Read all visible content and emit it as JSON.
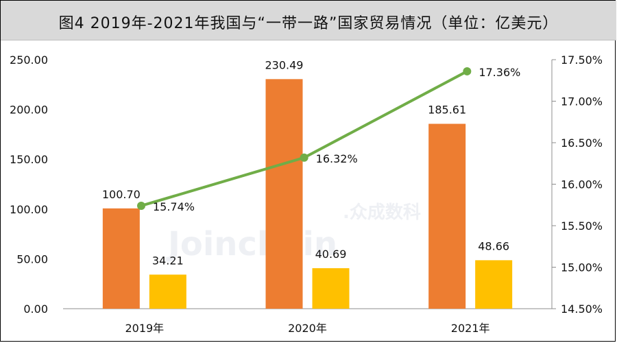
{
  "title": "图4  2019年-2021年我国与“一带一路”国家贸易情况（单位：亿美元）",
  "watermark": {
    "brand": "Joinchain",
    "suffix": ".众成数科"
  },
  "colors": {
    "bar_primary": "#ed7d31",
    "bar_secondary": "#ffc000",
    "line": "#70ad47",
    "title_bg": "#d9d9d9"
  },
  "chart_data": {
    "type": "bar",
    "categories": [
      "2019年",
      "2020年",
      "2021年"
    ],
    "series": [
      {
        "values": [
          100.7,
          230.49,
          185.61
        ],
        "color": "#ed7d31",
        "axis": "left"
      },
      {
        "values": [
          34.21,
          40.69,
          48.66
        ],
        "color": "#ffc000",
        "axis": "left"
      },
      {
        "type": "line",
        "values": [
          15.74,
          16.32,
          17.36
        ],
        "color": "#70ad47",
        "axis": "right"
      }
    ],
    "bar_value_labels": [
      [
        "100.70",
        "230.49",
        "185.61"
      ],
      [
        "34.21",
        "40.69",
        "48.66"
      ]
    ],
    "line_value_labels": [
      "15.74%",
      "16.32%",
      "17.36%"
    ],
    "ylim": [
      0,
      250
    ],
    "yticks": [
      "0.00",
      "50.00",
      "100.00",
      "150.00",
      "200.00",
      "250.00"
    ],
    "y2lim": [
      14.5,
      17.5
    ],
    "y2ticks": [
      "14.50%",
      "15.00%",
      "15.50%",
      "16.00%",
      "16.50%",
      "17.00%",
      "17.50%"
    ],
    "grid": false,
    "legend": "none"
  }
}
